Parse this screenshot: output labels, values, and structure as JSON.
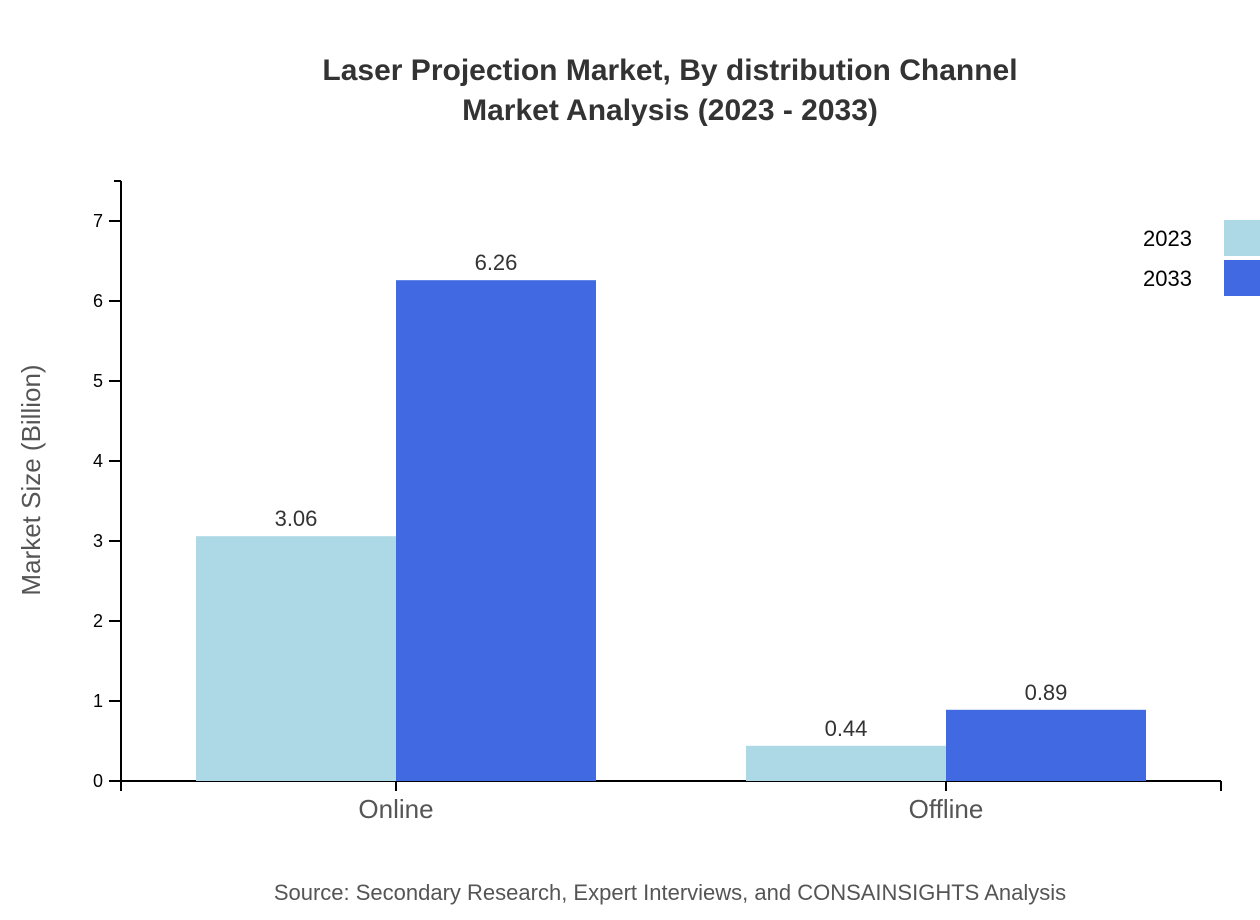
{
  "chart_data": {
    "type": "bar",
    "title": "Laser Projection Market, By distribution Channel",
    "subtitle": "Market Analysis (2023 - 2033)",
    "xlabel": "",
    "ylabel": "Market Size (Billion)",
    "categories": [
      "Online",
      "Offline"
    ],
    "series": [
      {
        "name": "2023",
        "values": [
          3.06,
          0.44
        ],
        "color": "#add8e6"
      },
      {
        "name": "2033",
        "values": [
          6.26,
          0.89
        ],
        "color": "#4169e1"
      }
    ],
    "ylim": [
      0,
      7.5
    ],
    "yticks": [
      0,
      1,
      2,
      3,
      4,
      5,
      6,
      7
    ],
    "grid": false,
    "legend_position": "top-right",
    "source": "Source: Secondary Research, Expert Interviews, and CONSAINSIGHTS Analysis"
  }
}
